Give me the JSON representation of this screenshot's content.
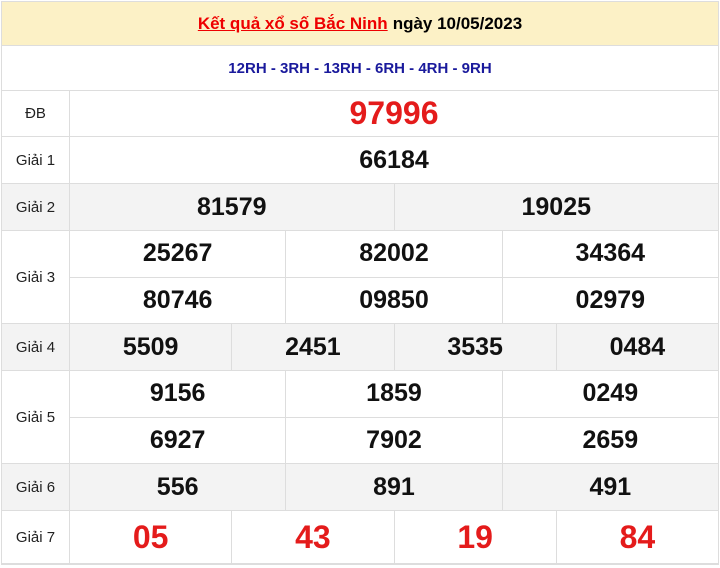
{
  "header": {
    "link_text": "Kết quả xổ số Bắc Ninh",
    "date_text": "ngày 10/05/2023"
  },
  "codes": "12RH - 3RH - 13RH - 6RH - 4RH - 9RH",
  "prizes": [
    {
      "label": "ĐB",
      "rows": [
        [
          "97996"
        ]
      ],
      "red": true,
      "gray": false
    },
    {
      "label": "Giải 1",
      "rows": [
        [
          "66184"
        ]
      ],
      "gray": false
    },
    {
      "label": "Giải 2",
      "rows": [
        [
          "81579",
          "19025"
        ]
      ],
      "gray": true
    },
    {
      "label": "Giải 3",
      "rows": [
        [
          "25267",
          "82002",
          "34364"
        ],
        [
          "80746",
          "09850",
          "02979"
        ]
      ],
      "gray": false
    },
    {
      "label": "Giải 4",
      "rows": [
        [
          "5509",
          "2451",
          "3535",
          "0484"
        ]
      ],
      "gray": true
    },
    {
      "label": "Giải 5",
      "rows": [
        [
          "9156",
          "1859",
          "0249"
        ],
        [
          "6927",
          "7902",
          "2659"
        ]
      ],
      "gray": false
    },
    {
      "label": "Giải 6",
      "rows": [
        [
          "556",
          "891",
          "491"
        ]
      ],
      "gray": true
    },
    {
      "label": "Giải 7",
      "rows": [
        [
          "05",
          "43",
          "19",
          "84"
        ]
      ],
      "red": true,
      "gray": false
    }
  ],
  "colors": {
    "accent_red": "#e41b1b",
    "code_blue": "#1a1a9c",
    "header_bg": "#fcf1c6"
  }
}
